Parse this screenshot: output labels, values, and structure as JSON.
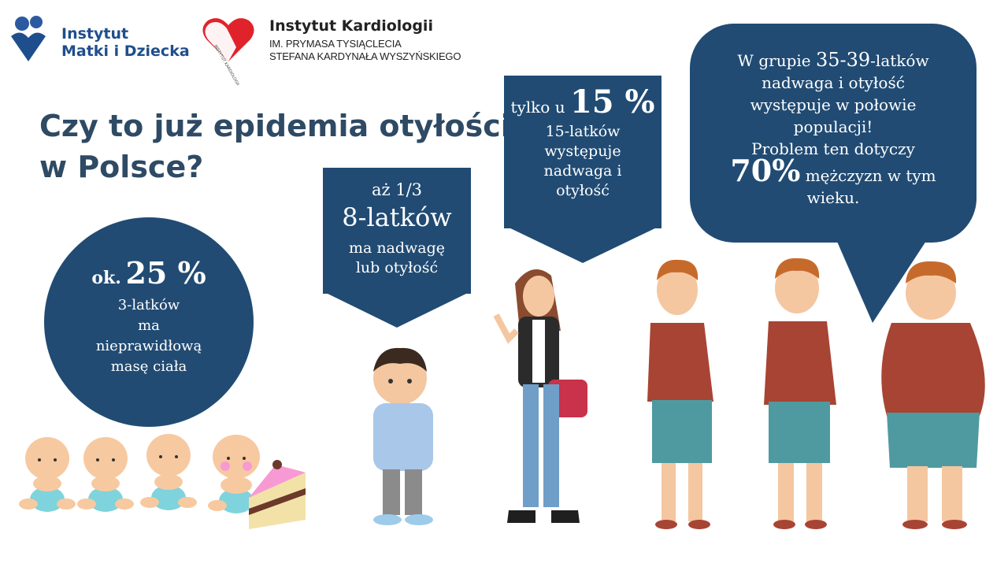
{
  "logos": {
    "imd": {
      "line1": "Instytut",
      "line2": "Matki i Dziecka"
    },
    "ik": {
      "title": "Instytut Kardiologii",
      "sub1": "IM. PRYMASA TYSIĄCLECIA",
      "sub2": "STEFANA KARDYNAŁA WYSZYŃSKIEGO",
      "heart_text": "INSTYTUT KARDIOLOGII"
    }
  },
  "headline": {
    "line1": "Czy to już epidemia otyłości",
    "line2": "w Polsce?"
  },
  "circle": {
    "prefix": "ok.",
    "percent": "25 %",
    "l1": "3-latków",
    "l2": "ma",
    "l3": "nieprawidłową",
    "l4": "masę ciała"
  },
  "box_eight": {
    "l1": "aż 1/3",
    "l2": "8-latków",
    "l3": "ma nadwagę",
    "l4": "lub otyłość"
  },
  "box_fifteen": {
    "prefix": "tylko u",
    "percent": "15 %",
    "l1": "15-latków",
    "l2": "występuje",
    "l3": "nadwaga i",
    "l4": "otyłość"
  },
  "bubble": {
    "l1a": "W grupie",
    "l1b": "35-39",
    "l1c": "-latków",
    "l2": "nadwaga i otyłość",
    "l3": "występuje w połowie",
    "l4": "populacji!",
    "l5": "Problem ten dotyczy",
    "pct": "70%",
    "l6b": "mężczyzn w tym",
    "l7": "wieku."
  },
  "colors": {
    "navy": "#214b73",
    "title": "#2e4a64",
    "logo_blue": "#1f4e8c",
    "heart_red": "#e0222b"
  }
}
